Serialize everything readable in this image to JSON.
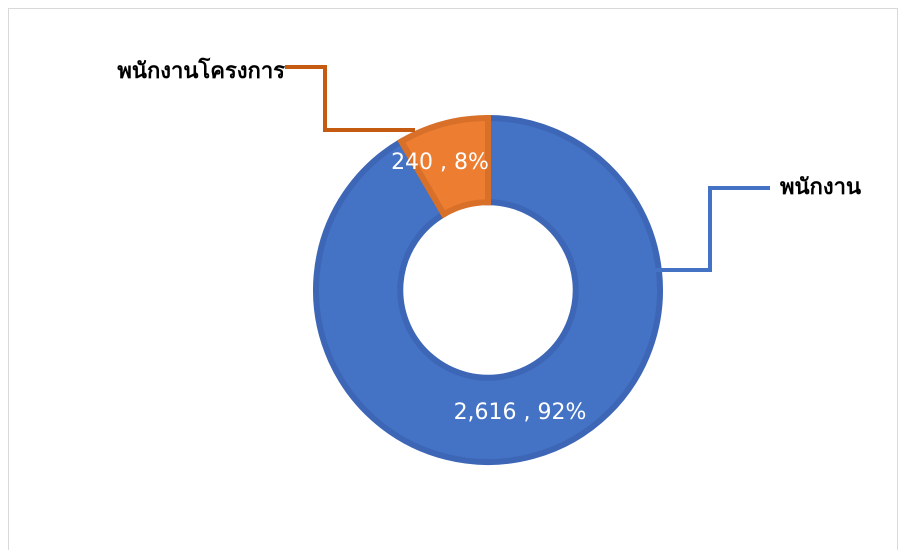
{
  "chart_data": {
    "type": "pie",
    "hole": 0.51,
    "categories": [
      "พนักงาน",
      "พนักงานโครงการ"
    ],
    "values": [
      2616,
      240
    ],
    "value_labels": [
      "2,616 , 92%",
      "240 , 8%"
    ],
    "colors": [
      "#4472c4",
      "#ed7d31"
    ]
  }
}
